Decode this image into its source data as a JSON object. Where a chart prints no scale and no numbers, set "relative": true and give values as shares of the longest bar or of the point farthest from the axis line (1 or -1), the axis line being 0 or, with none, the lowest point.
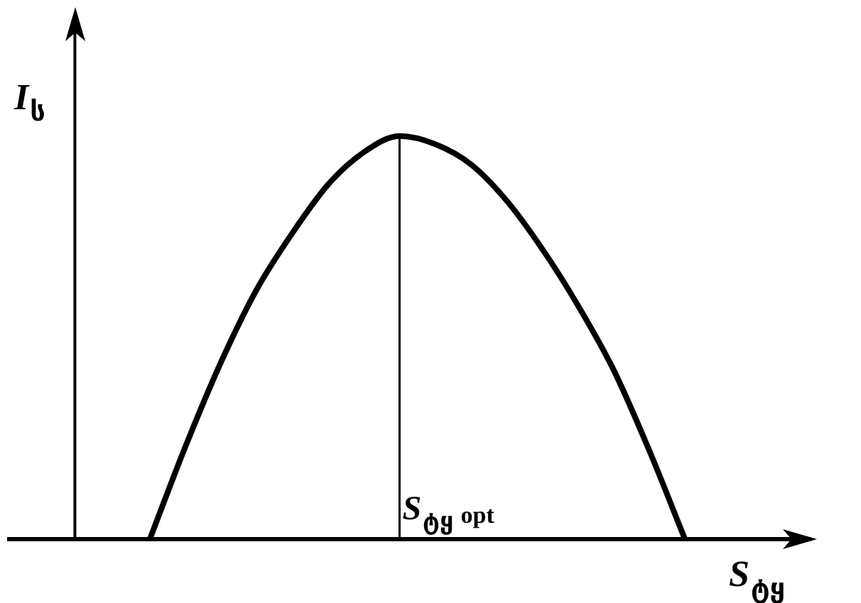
{
  "chart_data": {
    "type": "line",
    "relative": true,
    "xlabel": "S$_{ტყ}$",
    "ylabel": "I$_{ს}$",
    "categories": [
      null,
      null,
      null,
      null,
      null,
      null,
      null,
      null,
      null,
      null,
      null,
      null,
      null,
      null,
      null,
      null
    ],
    "series": [
      {
        "color": "#000000",
        "values": [
          0,
          0.23,
          0.44,
          0.62,
          0.76,
          0.88,
          0.96,
          1,
          0.98,
          0.93,
          0.84,
          0.72,
          0.58,
          0.42,
          0.22,
          0
        ]
      }
    ],
    "annotations": [
      "S$_{ტყ}$ opt"
    ],
    "marker": "none",
    "legend": false
  }
}
